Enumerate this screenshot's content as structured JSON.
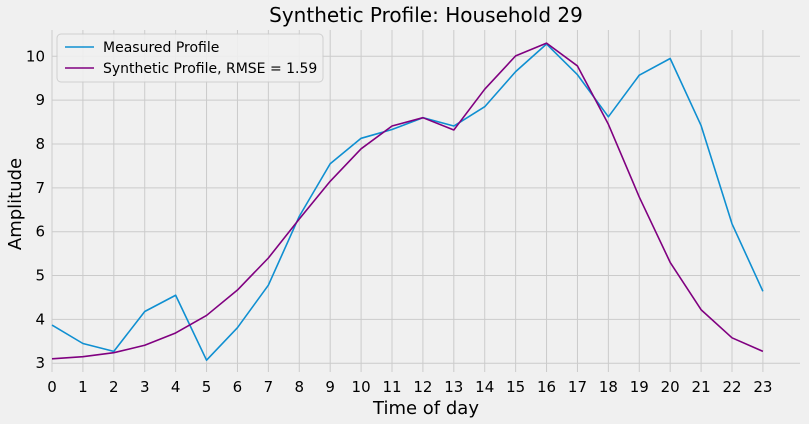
{
  "chart_data": {
    "type": "line",
    "title": "Synthetic Profile: Household 29",
    "xlabel": "Time of day",
    "ylabel": "Amplitude",
    "x": [
      0,
      1,
      2,
      3,
      4,
      5,
      6,
      7,
      8,
      9,
      10,
      11,
      12,
      13,
      14,
      15,
      16,
      17,
      18,
      19,
      20,
      21,
      22,
      23
    ],
    "xlim": [
      0,
      24.2
    ],
    "ylim": [
      2.8,
      10.6
    ],
    "yticks": [
      3,
      4,
      5,
      6,
      7,
      8,
      9,
      10
    ],
    "grid": true,
    "legend_position": "top-left",
    "series": [
      {
        "name": "Measured Profile",
        "color": "#0f8fd1",
        "values": [
          3.87,
          3.45,
          3.27,
          4.18,
          4.55,
          3.07,
          3.81,
          4.78,
          6.35,
          7.55,
          8.13,
          8.33,
          8.6,
          8.41,
          8.85,
          9.65,
          10.28,
          9.58,
          8.62,
          9.57,
          9.95,
          8.42,
          6.18,
          4.64
        ]
      },
      {
        "name": "Synthetic Profile, RMSE = 1.59",
        "color": "#800080",
        "values": [
          3.1,
          3.15,
          3.24,
          3.41,
          3.69,
          4.09,
          4.67,
          5.4,
          6.29,
          7.15,
          7.89,
          8.41,
          8.6,
          8.32,
          9.25,
          10.01,
          10.3,
          9.78,
          8.45,
          6.79,
          5.3,
          4.22,
          3.58,
          3.27
        ]
      }
    ]
  }
}
